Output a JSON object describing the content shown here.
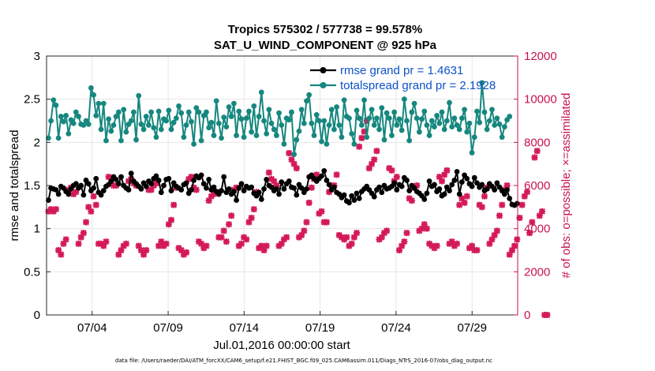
{
  "chart_data": {
    "type": "line",
    "title_line1": "Tropics 575302 / 577738 = 99.578%",
    "title_line2": "SAT_U_WIND_COMPONENT @ 925 hPa",
    "xlabel": "Jul.01,2016 00:00:00 start",
    "ylabel_left": "rmse and totalspread",
    "ylabel_right": "# of obs: o=possible; ×=assimilated",
    "footer": "data file: /Users/raeder/DAI/ATM_forcXX/CAM6_setup/f.e21.FHIST_BGC.f09_025.CAM6assim.011/Diags_NTrS_2016-07/obs_diag_output.nc",
    "xlim": [
      1,
      32
    ],
    "ylim_left": [
      0,
      3
    ],
    "ylim_right": [
      0,
      12000
    ],
    "x_ticks": [
      4,
      9,
      14,
      19,
      24,
      29
    ],
    "x_tick_labels": [
      "07/04",
      "07/09",
      "07/14",
      "07/19",
      "07/24",
      "07/29"
    ],
    "y_ticks_left": [
      0,
      0.5,
      1,
      1.5,
      2,
      2.5,
      3
    ],
    "y_tick_labels_left": [
      "0",
      "0.5",
      "1",
      "1.5",
      "2",
      "2.5",
      "3"
    ],
    "y_ticks_right": [
      0,
      2000,
      4000,
      6000,
      8000,
      10000,
      12000
    ],
    "y_tick_labels_right": [
      "0",
      "2000",
      "4000",
      "6000",
      "8000",
      "10000",
      "12000"
    ],
    "legend": [
      {
        "label": "rmse grand pr = 1.4631",
        "color": "#000000"
      },
      {
        "label": "totalspread grand pr = 2.1928",
        "color": "#16877f"
      }
    ],
    "colors": {
      "rmse": "#000000",
      "spread": "#16877f",
      "obs": "#d4195a"
    },
    "series_note": "four analysis times per day",
    "rmse": [
      1.33,
      1.47,
      1.46,
      1.45,
      1.4,
      1.49,
      1.47,
      1.43,
      1.4,
      1.46,
      1.5,
      1.52,
      1.47,
      1.5,
      1.39,
      1.56,
      1.52,
      1.44,
      1.47,
      1.58,
      1.42,
      1.39,
      1.44,
      1.49,
      1.51,
      1.55,
      1.6,
      1.57,
      1.52,
      1.6,
      1.5,
      1.47,
      1.45,
      1.64,
      1.55,
      1.52,
      1.49,
      1.46,
      1.53,
      1.49,
      1.55,
      1.52,
      1.58,
      1.61,
      1.56,
      1.42,
      1.5,
      1.57,
      1.58,
      1.44,
      1.53,
      1.49,
      1.47,
      1.45,
      1.51,
      1.53,
      1.41,
      1.45,
      1.56,
      1.61,
      1.59,
      1.62,
      1.52,
      1.47,
      1.57,
      1.45,
      1.48,
      1.43,
      1.4,
      1.44,
      1.6,
      1.42,
      1.46,
      1.4,
      1.43,
      1.33,
      1.47,
      1.52,
      1.44,
      1.49,
      1.47,
      1.48,
      1.41,
      1.38,
      1.42,
      1.34,
      1.46,
      1.57,
      1.5,
      1.48,
      1.44,
      1.46,
      1.4,
      1.54,
      1.46,
      1.52,
      1.55,
      1.48,
      1.47,
      1.39,
      1.51,
      1.47,
      1.42,
      1.46,
      1.6,
      1.62,
      1.58,
      1.55,
      1.58,
      1.61,
      1.67,
      1.56,
      1.51,
      1.45,
      1.48,
      1.42,
      1.4,
      1.36,
      1.39,
      1.32,
      1.3,
      1.38,
      1.33,
      1.41,
      1.35,
      1.43,
      1.46,
      1.49,
      1.45,
      1.41,
      1.37,
      1.45,
      1.48,
      1.42,
      1.5,
      1.46,
      1.47,
      1.49,
      1.53,
      1.45,
      1.51,
      1.49,
      1.59,
      1.56,
      1.44,
      1.5,
      1.47,
      1.43,
      1.41,
      1.38,
      1.34,
      1.41,
      1.55,
      1.49,
      1.51,
      1.43,
      1.46,
      1.38,
      1.4,
      1.48,
      1.44,
      1.51,
      1.56,
      1.66,
      1.4,
      1.54,
      1.62,
      1.58,
      1.52,
      1.49,
      1.59,
      1.53,
      1.48,
      1.51,
      1.44,
      1.46,
      1.52,
      1.49,
      1.45,
      1.53,
      1.48,
      1.44,
      1.4,
      1.45,
      1.35,
      1.28,
      1.27,
      1.29
    ],
    "spread": [
      2.05,
      2.25,
      2.49,
      2.43,
      2.05,
      2.3,
      2.24,
      2.31,
      2.1,
      2.26,
      2.22,
      2.35,
      2.3,
      2.21,
      2.2,
      2.25,
      2.21,
      2.63,
      2.55,
      2.31,
      2.45,
      2.15,
      2.45,
      2.02,
      2.27,
      2.13,
      2.2,
      2.3,
      2.35,
      2.02,
      2.38,
      2.12,
      2.21,
      2.25,
      2.35,
      2.03,
      2.54,
      2.21,
      2.15,
      2.3,
      2.2,
      2.35,
      2.17,
      2.06,
      2.36,
      2.15,
      2.27,
      2.25,
      2.37,
      2.15,
      2.23,
      2.28,
      2.42,
      2.34,
      2.06,
      2.2,
      2.35,
      2.24,
      1.98,
      2.4,
      2.35,
      2.02,
      2.31,
      2.35,
      2.17,
      2.23,
      2.08,
      2.48,
      2.22,
      2.05,
      2.29,
      2.18,
      2.41,
      2.3,
      2.45,
      2.08,
      2.36,
      2.27,
      2.06,
      2.28,
      2.36,
      2.12,
      2.42,
      2.08,
      2.3,
      2.58,
      2.25,
      2.1,
      2.38,
      2.22,
      2.15,
      2.08,
      2.34,
      2.2,
      1.98,
      2.28,
      2.26,
      2.35,
      1.86,
      2.03,
      2.13,
      2.38,
      2.22,
      2.48,
      2.55,
      2.22,
      2.08,
      2.32,
      2.25,
      2.01,
      2.25,
      1.98,
      2.2,
      2.38,
      2.15,
      2.41,
      2.2,
      2.06,
      2.49,
      2.3,
      2.28,
      2.1,
      1.98,
      2.37,
      2.28,
      2.2,
      2.49,
      2.06,
      2.28,
      2.38,
      2.2,
      2.28,
      2.15,
      2.4,
      2.03,
      2.34,
      2.28,
      2.08,
      2.35,
      2.2,
      2.27,
      2.14,
      2.5,
      2.25,
      2.02,
      2.35,
      2.45,
      2.28,
      2.12,
      2.27,
      2.36,
      2.2,
      2.08,
      2.25,
      2.18,
      2.31,
      2.22,
      2.35,
      2.15,
      2.25,
      2.46,
      2.18,
      2.28,
      2.2,
      2.15,
      2.28,
      2.38,
      2.12,
      2.22,
      1.88,
      2.06,
      2.36,
      2.23,
      2.69,
      2.35,
      2.15,
      2.25,
      2.38,
      2.2,
      2.28,
      2.21,
      2.06,
      2.18,
      2.26,
      2.3
    ],
    "obs": [
      4800,
      4900,
      4800,
      4900,
      3000,
      2800,
      3300,
      3500,
      5800,
      5900,
      5600,
      5700,
      3300,
      3600,
      3800,
      4300,
      5000,
      4800,
      5500,
      5100,
      3300,
      3300,
      3200,
      3400,
      6400,
      6300,
      6000,
      6000,
      2800,
      3000,
      3200,
      3300,
      6200,
      6300,
      6100,
      6000,
      3200,
      3000,
      2800,
      3000,
      5800,
      5800,
      6000,
      6100,
      3200,
      3400,
      3200,
      3300,
      4200,
      4400,
      5100,
      5900,
      3100,
      3000,
      2800,
      2900,
      6300,
      6400,
      5900,
      5800,
      3400,
      3300,
      3100,
      3200,
      5300,
      5500,
      5600,
      5700,
      3600,
      3600,
      3900,
      3400,
      4200,
      4600,
      5800,
      5900,
      3200,
      3300,
      3600,
      3500,
      4300,
      4500,
      4900,
      5700,
      3100,
      3200,
      3000,
      3200,
      6600,
      6300,
      6200,
      6000,
      3200,
      3300,
      3500,
      3600,
      7500,
      7200,
      7000,
      6800,
      3600,
      3700,
      3900,
      4300,
      5200,
      5900,
      6300,
      6500,
      4700,
      4800,
      4300,
      4300,
      5700,
      6000,
      6000,
      6500,
      3700,
      3600,
      3500,
      3600,
      3200,
      3300,
      3600,
      3800,
      7800,
      8200,
      8500,
      9000,
      6800,
      7000,
      7200,
      7600,
      3500,
      3600,
      3800,
      3900,
      6800,
      6700,
      6200,
      6400,
      3000,
      3200,
      3400,
      3800,
      5400,
      5300,
      5900,
      6000,
      3900,
      4000,
      4200,
      4000,
      3300,
      3200,
      3100,
      3200,
      6400,
      6200,
      6500,
      6700,
      3300,
      3400,
      3200,
      3300,
      5100,
      5400,
      5200,
      5500,
      3100,
      3200,
      3000,
      3000,
      5100,
      5000,
      5500,
      5900,
      3300,
      3500,
      3700,
      3900,
      4600,
      5100,
      5800,
      6000,
      2800,
      3000,
      3200,
      3500,
      4500,
      5100,
      5500,
      5700,
      3800,
      4300,
      7300,
      7600,
      4600,
      4800,
      0,
      0
    ]
  }
}
